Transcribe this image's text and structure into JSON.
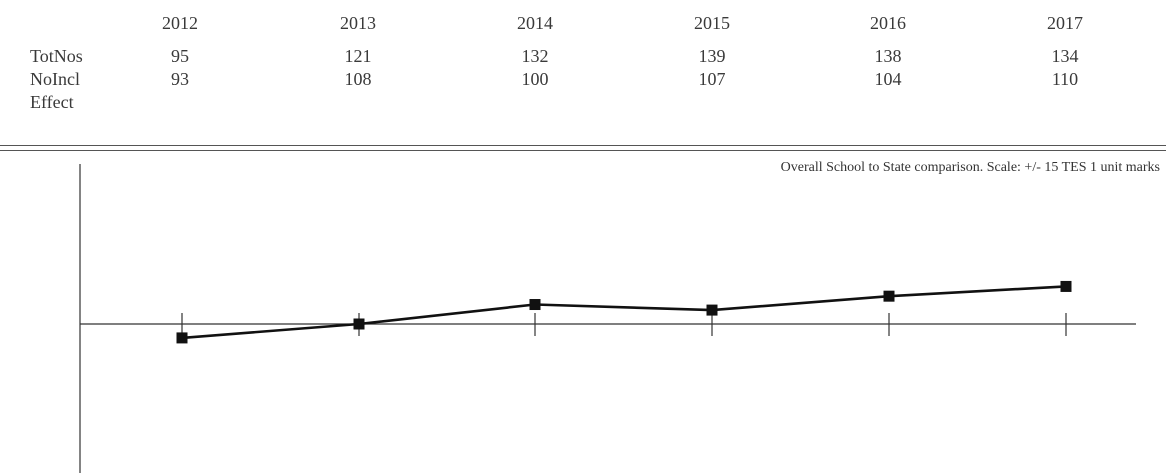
{
  "table": {
    "years": [
      "2012",
      "2013",
      "2014",
      "2015",
      "2016",
      "2017"
    ],
    "rows": [
      {
        "label": "TotNos",
        "values": [
          "95",
          "121",
          "132",
          "139",
          "138",
          "134"
        ]
      },
      {
        "label": "NoIncl",
        "values": [
          "93",
          "108",
          "100",
          "107",
          "104",
          "110"
        ]
      },
      {
        "label": "Effect",
        "values": [
          "",
          "",
          "",
          "",
          "",
          ""
        ]
      }
    ]
  },
  "chart_data": {
    "type": "line",
    "title": "",
    "caption": "Overall School to State comparison. Scale: +/- 15 TES 1 unit marks",
    "categories": [
      "2012",
      "2013",
      "2014",
      "2015",
      "2016",
      "2017"
    ],
    "series": [
      {
        "values": [
          -1,
          0,
          1.4,
          1.0,
          2.0,
          2.7
        ]
      }
    ],
    "ylim": [
      -11.5,
      11.5
    ],
    "grid": false,
    "colors": {
      "line": "#111111",
      "marker": "#111111",
      "axis": "#333333"
    }
  }
}
